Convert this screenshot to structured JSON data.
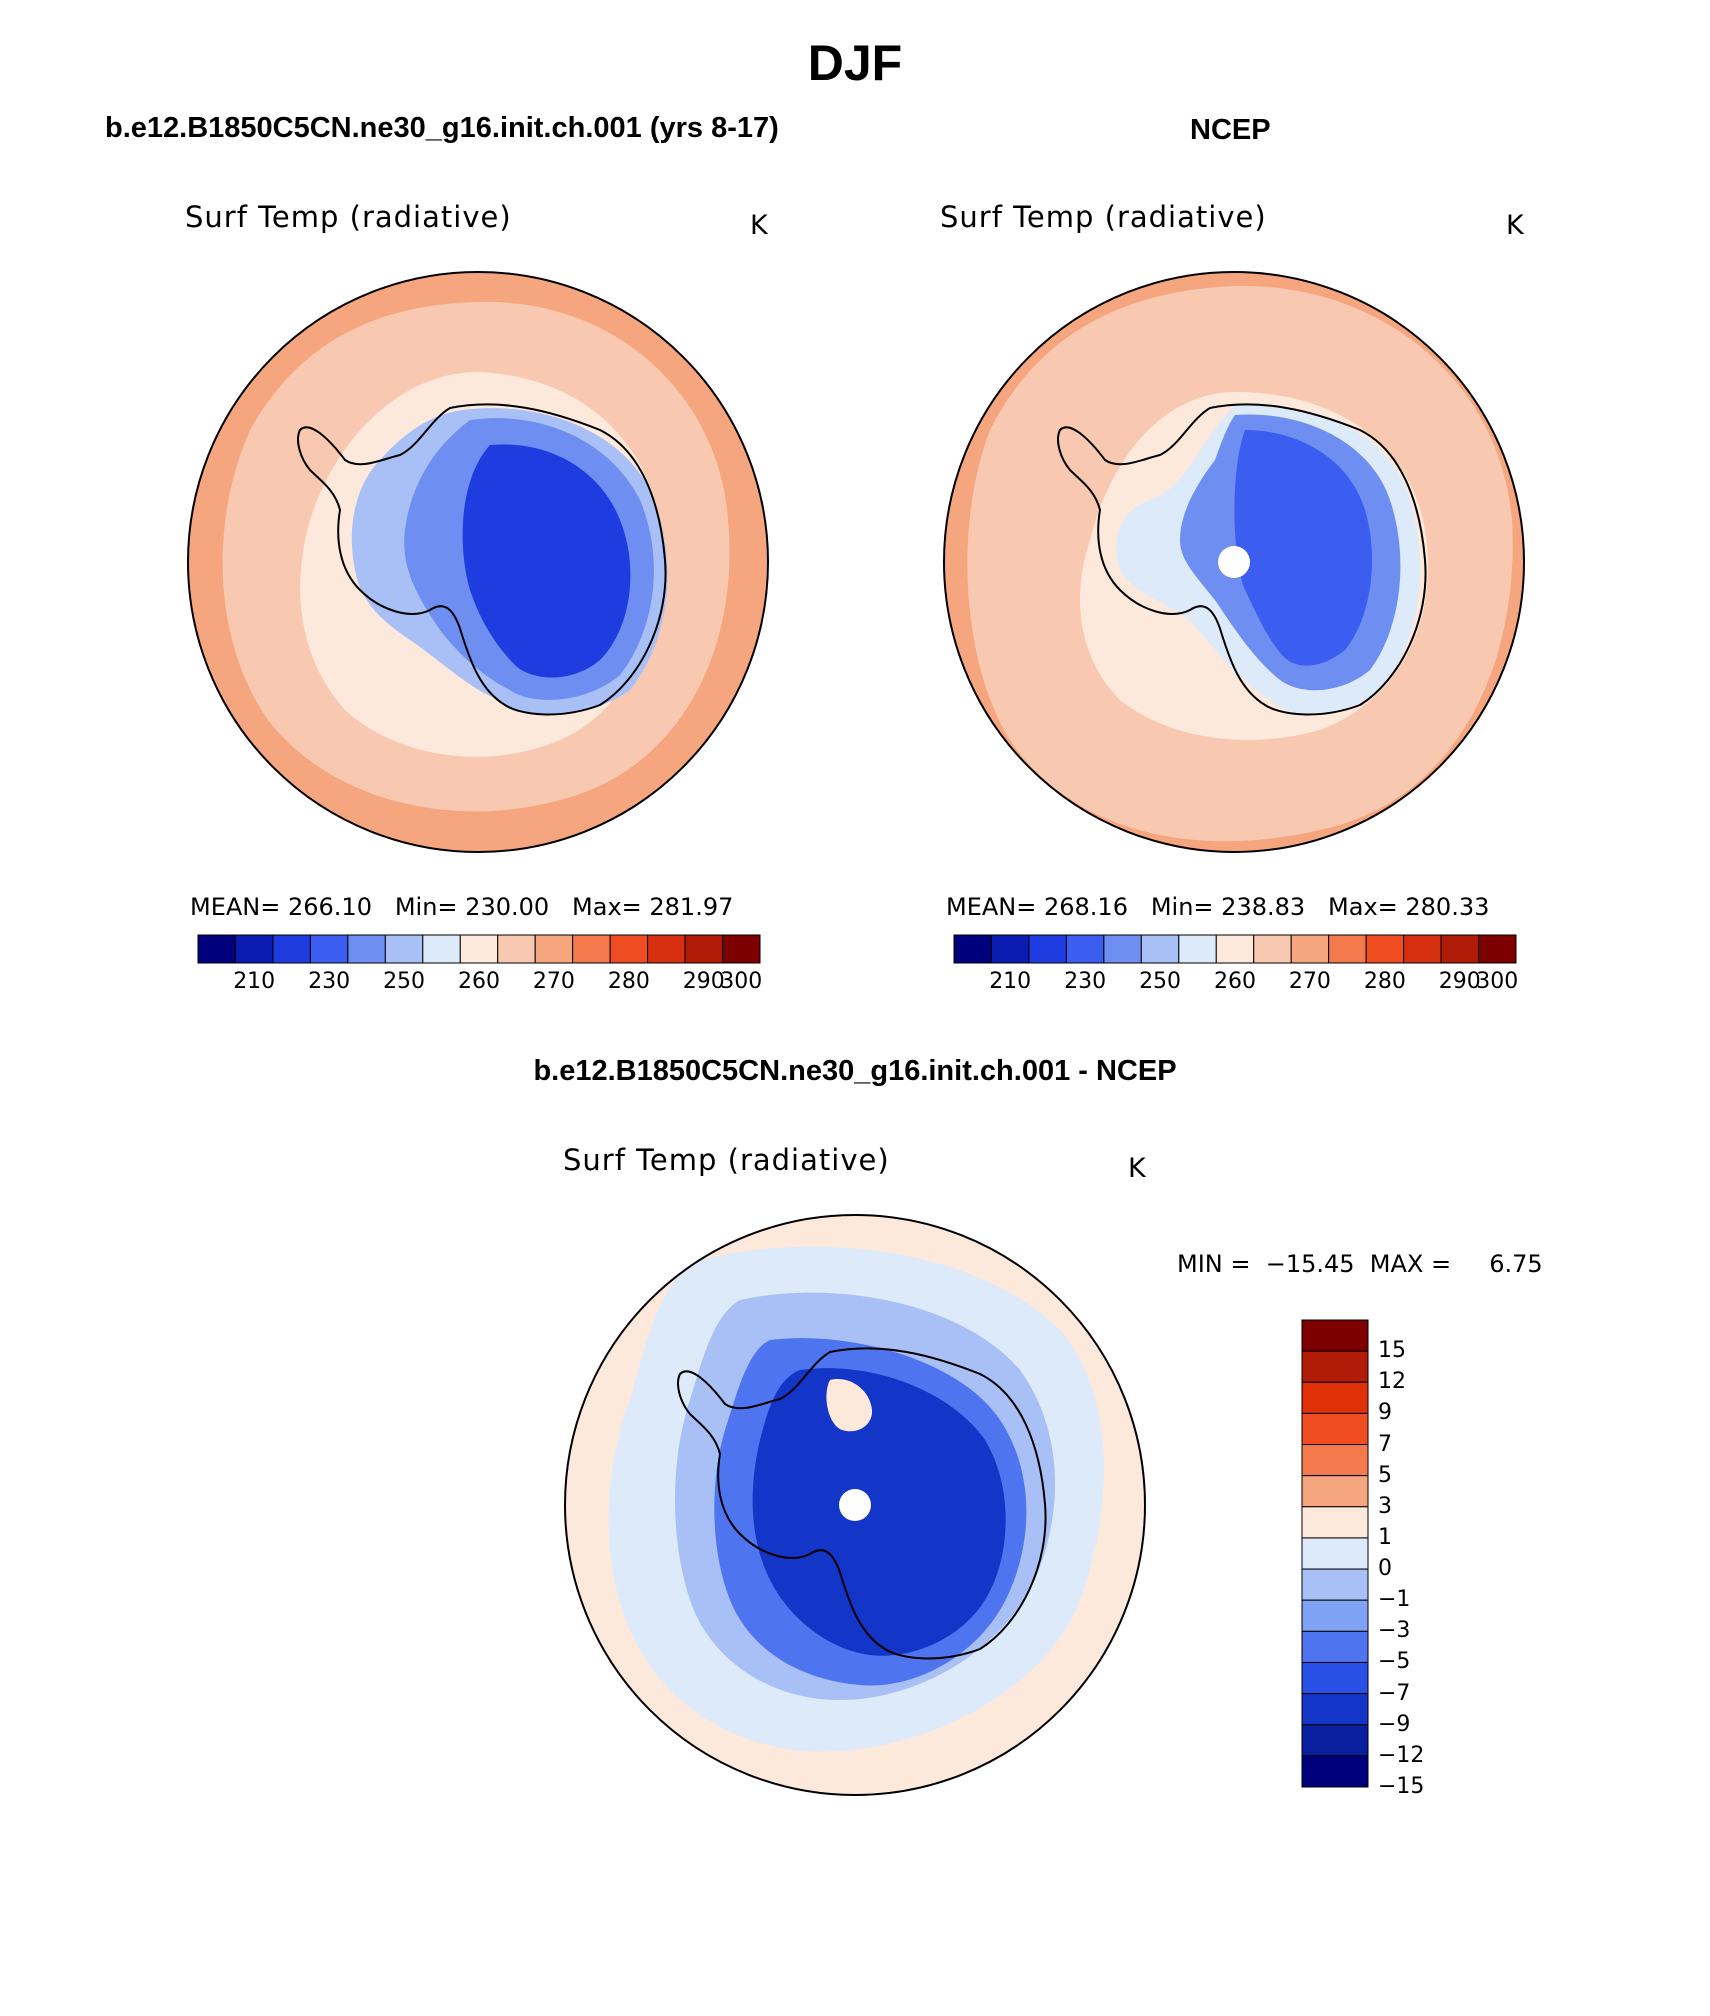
{
  "main_title": "DJF",
  "panels": [
    {
      "heading": "b.e12.B1850C5CN.ne30_g16.init.ch.001 (yrs 8-17)",
      "field": "Surf Temp (radiative)",
      "units": "K",
      "stats": "MEAN= 266.10   Min= 230.00   Max= 281.97",
      "colorbar_ticks": [
        "210",
        "230",
        "250",
        "260",
        "270",
        "280",
        "290",
        "300"
      ]
    },
    {
      "heading": "NCEP",
      "field": "Surf Temp (radiative)",
      "units": "K",
      "stats": "MEAN= 268.16   Min= 238.83   Max= 280.33",
      "colorbar_ticks": [
        "210",
        "230",
        "250",
        "260",
        "270",
        "280",
        "290",
        "300"
      ]
    },
    {
      "heading": "b.e12.B1850C5CN.ne30_g16.init.ch.001 - NCEP",
      "field": "Surf Temp (radiative)",
      "units": "K",
      "stats": "MIN =  −15.45  MAX =     6.75",
      "colorbar_ticks": [
        "15",
        "12",
        "9",
        "7",
        "5",
        "3",
        "1",
        "0",
        "−1",
        "−3",
        "−5",
        "−7",
        "−9",
        "−12",
        "−15"
      ]
    }
  ],
  "colors": {
    "abs_scale": [
      "#00007d",
      "#0a1cb2",
      "#1e3ce0",
      "#3c5ef0",
      "#6e8ef2",
      "#a8c0f6",
      "#dceaf9",
      "#fde8dc",
      "#f9c8b0",
      "#f6a67e",
      "#f47a4e",
      "#f04e22",
      "#d63010",
      "#b01c08",
      "#7d0000"
    ],
    "diff_scale": [
      "#7d0000",
      "#b01c08",
      "#e03008",
      "#f04e22",
      "#f47a4e",
      "#f6a67e",
      "#fde8dc",
      "#dceaf9",
      "#a8c0f6",
      "#7ea2f4",
      "#4e74f0",
      "#2850e6",
      "#1436c8",
      "#0a1ea0",
      "#00007d"
    ],
    "outline": "#000000",
    "background": "#ffffff"
  },
  "map": {
    "projection": "south polar stereographic",
    "region": "Antarctica and Southern Ocean"
  }
}
